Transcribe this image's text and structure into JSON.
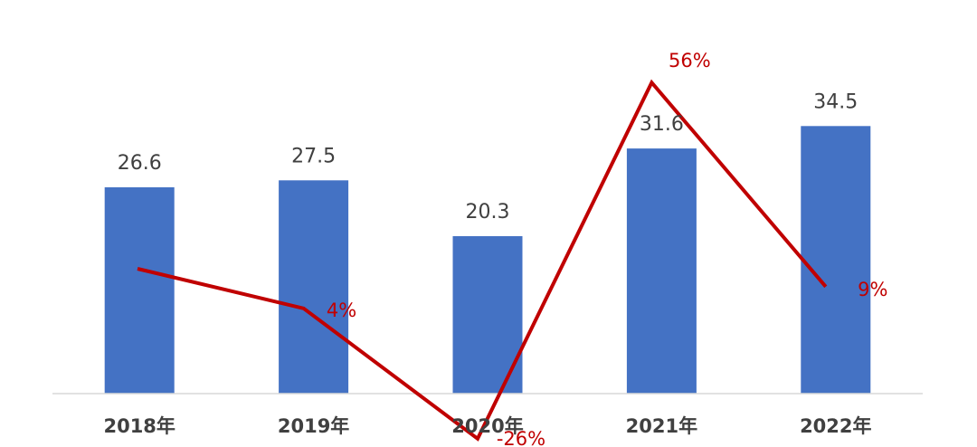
{
  "chart_data": {
    "type": "bar",
    "title": "",
    "xlabel": "",
    "ylabel": "",
    "categories": [
      "2018年",
      "2019年",
      "2020年",
      "2021年",
      "2022年"
    ],
    "series": [
      {
        "type": "bar",
        "values": [
          26.6,
          27.5,
          20.3,
          31.6,
          34.5
        ],
        "labels": [
          "26.6",
          "27.5",
          "20.3",
          "31.6",
          "34.5"
        ],
        "color": "#4472C4"
      },
      {
        "type": "line",
        "values": [
          null,
          4,
          -26,
          56,
          9
        ],
        "labels": [
          "",
          "4%",
          "-26%",
          "56%",
          "9%"
        ],
        "color": "#C00000"
      }
    ],
    "ylim": [
      0,
      40
    ],
    "y2lim": [
      -40,
      80
    ],
    "grid": false,
    "legend": "none"
  }
}
